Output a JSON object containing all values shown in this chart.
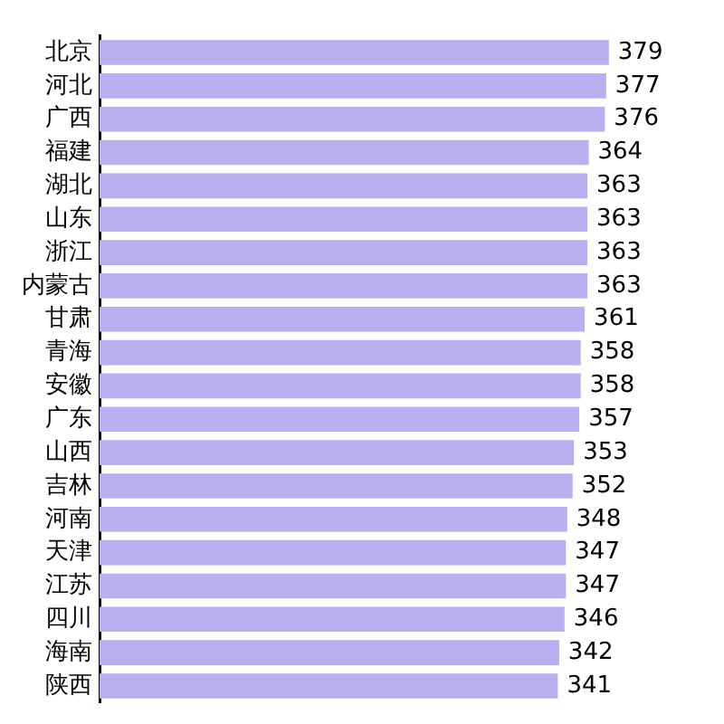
{
  "chart_data": {
    "type": "bar",
    "orientation": "horizontal",
    "categories": [
      "北京",
      "河北",
      "广西",
      "福建",
      "湖北",
      "山东",
      "浙江",
      "内蒙古",
      "甘肃",
      "青海",
      "安徽",
      "广东",
      "山西",
      "吉林",
      "河南",
      "天津",
      "江苏",
      "四川",
      "海南",
      "陕西"
    ],
    "values": [
      379,
      377,
      376,
      364,
      363,
      363,
      363,
      363,
      361,
      358,
      358,
      357,
      353,
      352,
      348,
      347,
      347,
      346,
      342,
      341
    ],
    "color": "#b8aef0",
    "data_labels": true
  }
}
